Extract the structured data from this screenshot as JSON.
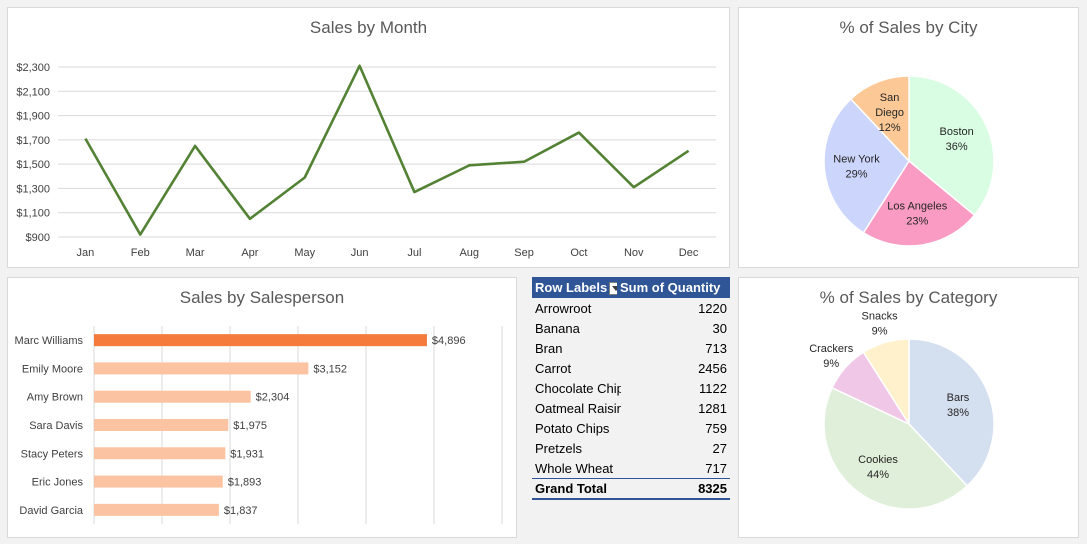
{
  "chart_data": [
    {
      "type": "line",
      "title": "Sales by Month",
      "categories": [
        "Jan",
        "Feb",
        "Mar",
        "Apr",
        "May",
        "Jun",
        "Jul",
        "Aug",
        "Sep",
        "Oct",
        "Nov",
        "Dec"
      ],
      "values": [
        1710,
        920,
        1650,
        1050,
        1390,
        2310,
        1270,
        1490,
        1520,
        1760,
        1310,
        1610
      ],
      "yticks": [
        "$900",
        "$1,100",
        "$1,300",
        "$1,500",
        "$1,700",
        "$1,900",
        "$2,100",
        "$2,300"
      ],
      "ylim": [
        900,
        2300
      ],
      "grid": true,
      "color": "#548235"
    },
    {
      "type": "pie",
      "title": "% of Sales by City",
      "slices": [
        {
          "label": "Boston",
          "pct": "36%",
          "value": 36,
          "color": "#d9fde3"
        },
        {
          "label": "Los Angeles",
          "pct": "23%",
          "value": 23,
          "color": "#f99bc2"
        },
        {
          "label": "New York",
          "pct": "29%",
          "value": 29,
          "color": "#ccd5fb"
        },
        {
          "label": "San Diego",
          "pct": "12%",
          "value": 12,
          "color": "#fcc996"
        }
      ]
    },
    {
      "type": "bar",
      "title": "Sales by Salesperson",
      "categories": [
        "Marc Williams",
        "Emily Moore",
        "Amy Brown",
        "Sara Davis",
        "Stacy Peters",
        "Eric Jones",
        "David Garcia"
      ],
      "values": [
        4896,
        3152,
        2304,
        1975,
        1931,
        1893,
        1837
      ],
      "labels": [
        "$4,896",
        "$3,152",
        "$2,304",
        "$1,975",
        "$1,931",
        "$1,893",
        "$1,837"
      ],
      "highlight_color": "#f47b3c",
      "color": "#fbc3a2",
      "xlim": [
        0,
        6000
      ],
      "grid": true
    },
    {
      "type": "table",
      "header": [
        "Row Labels",
        "Sum of Quantity"
      ],
      "rows": [
        [
          "Arrowroot",
          "1220"
        ],
        [
          "Banana",
          "30"
        ],
        [
          "Bran",
          "713"
        ],
        [
          "Carrot",
          "2456"
        ],
        [
          "Chocolate Chip",
          "1122"
        ],
        [
          "Oatmeal Raisin",
          "1281"
        ],
        [
          "Potato Chips",
          "759"
        ],
        [
          "Pretzels",
          "27"
        ],
        [
          "Whole Wheat",
          "717"
        ]
      ],
      "total": [
        "Grand Total",
        "8325"
      ]
    },
    {
      "type": "pie",
      "title": "% of Sales by Category",
      "slices": [
        {
          "label": "Bars",
          "pct": "38%",
          "value": 38,
          "color": "#d4dff0"
        },
        {
          "label": "Cookies",
          "pct": "44%",
          "value": 44,
          "color": "#e0efd9"
        },
        {
          "label": "Crackers",
          "pct": "9%",
          "value": 9,
          "color": "#f1c7e8"
        },
        {
          "label": "Snacks",
          "pct": "9%",
          "value": 9,
          "color": "#fef1cb"
        }
      ]
    }
  ]
}
